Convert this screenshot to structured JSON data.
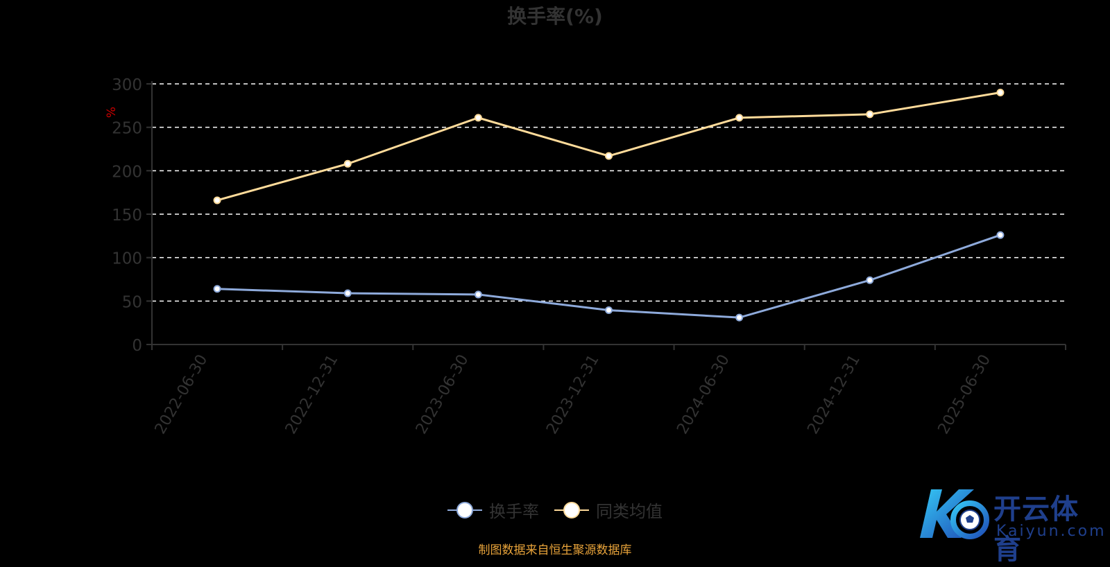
{
  "chart_data": {
    "type": "line",
    "title": "换手率(%)",
    "ylabel": "%",
    "xlabel": "",
    "ylim": [
      0,
      300
    ],
    "yticks": [
      0,
      50,
      100,
      150,
      200,
      250,
      300
    ],
    "grid": true,
    "legend_position": "bottom",
    "categories": [
      "2022-06-30",
      "2022-12-31",
      "2023-06-30",
      "2023-12-31",
      "2024-06-30",
      "2024-12-31",
      "2025-06-30"
    ],
    "series": [
      {
        "name": "换手率",
        "color": "#8eaadb",
        "values": [
          64.0,
          59.0,
          57.5,
          39.5,
          31.0,
          74.0,
          126.0
        ]
      },
      {
        "name": "同类均值",
        "color": "#ffdb9a",
        "values": [
          166.0,
          208.0,
          261.0,
          217.0,
          261.0,
          265.0,
          290.0
        ]
      }
    ]
  },
  "source_note": "制图数据来自恒生聚源数据库",
  "watermark": {
    "cn": "开云体育",
    "en": "Kaiyun.com"
  },
  "colors": {
    "axis": "#333333",
    "grid": "#ffffff",
    "ylabel": "#cc0000",
    "source": "#e8a33a",
    "logo": "#1f3f8c"
  }
}
